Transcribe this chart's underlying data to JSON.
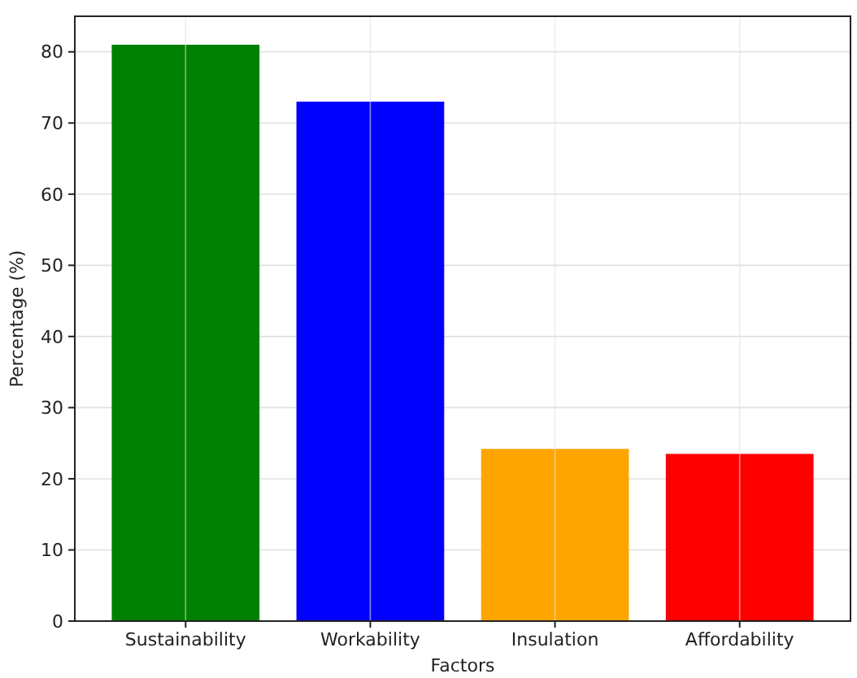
{
  "chart_data": {
    "type": "bar",
    "xlabel": "Factors",
    "ylabel": "Percentage (%)",
    "categories": [
      "Sustainability",
      "Workability",
      "Insulation",
      "Affordability"
    ],
    "values": [
      81,
      73,
      24.2,
      23.5
    ],
    "colors": [
      "#008000",
      "#0000ff",
      "#ffa500",
      "#ff0000"
    ],
    "ylim": [
      0,
      85
    ],
    "yticks": [
      0,
      10,
      20,
      30,
      40,
      50,
      60,
      70,
      80
    ],
    "grid": true
  }
}
